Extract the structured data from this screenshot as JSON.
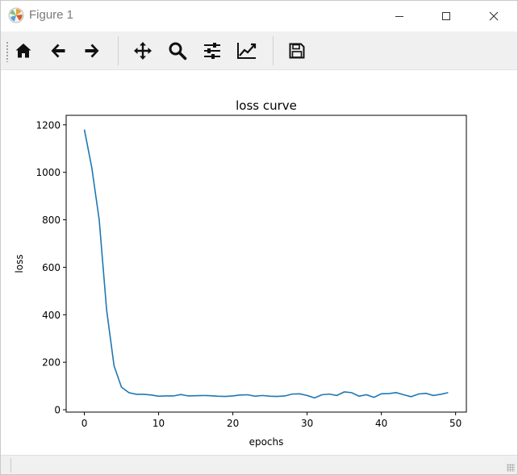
{
  "window": {
    "title": "Figure 1"
  },
  "toolbar": {
    "buttons": [
      {
        "name": "home",
        "icon": "home-icon"
      },
      {
        "name": "back",
        "icon": "arrow-left-icon"
      },
      {
        "name": "forward",
        "icon": "arrow-right-icon"
      },
      {
        "name": "pan",
        "icon": "move-icon"
      },
      {
        "name": "zoom",
        "icon": "search-icon"
      },
      {
        "name": "subplots",
        "icon": "sliders-icon"
      },
      {
        "name": "customize",
        "icon": "line-chart-icon"
      },
      {
        "name": "save",
        "icon": "floppy-disk-icon"
      }
    ]
  },
  "chart_data": {
    "type": "line",
    "title": "loss curve",
    "xlabel": "epochs",
    "ylabel": "loss",
    "xlim": [
      -2.45,
      51.45
    ],
    "ylim": [
      -10,
      1240
    ],
    "xticks": [
      0,
      10,
      20,
      30,
      40,
      50
    ],
    "yticks": [
      0,
      200,
      400,
      600,
      800,
      1000,
      1200
    ],
    "grid": false,
    "line_color": "#1f77b4",
    "series": [
      {
        "x": [
          0,
          1,
          2,
          3,
          4,
          5,
          6,
          7,
          8,
          9,
          10,
          11,
          12,
          13,
          14,
          15,
          16,
          17,
          18,
          19,
          20,
          21,
          22,
          23,
          24,
          25,
          26,
          27,
          28,
          29,
          30,
          31,
          32,
          33,
          34,
          35,
          36,
          37,
          38,
          39,
          40,
          41,
          42,
          43,
          44,
          45,
          46,
          47,
          48,
          49
        ],
        "values": [
          1180,
          1020,
          800,
          420,
          185,
          95,
          72,
          65,
          65,
          62,
          57,
          58,
          58,
          64,
          58,
          59,
          60,
          59,
          57,
          56,
          58,
          62,
          63,
          57,
          60,
          57,
          56,
          58,
          66,
          67,
          60,
          50,
          63,
          66,
          60,
          75,
          72,
          57,
          63,
          52,
          67,
          68,
          72,
          63,
          55,
          66,
          69,
          60,
          65,
          72
        ]
      }
    ]
  }
}
